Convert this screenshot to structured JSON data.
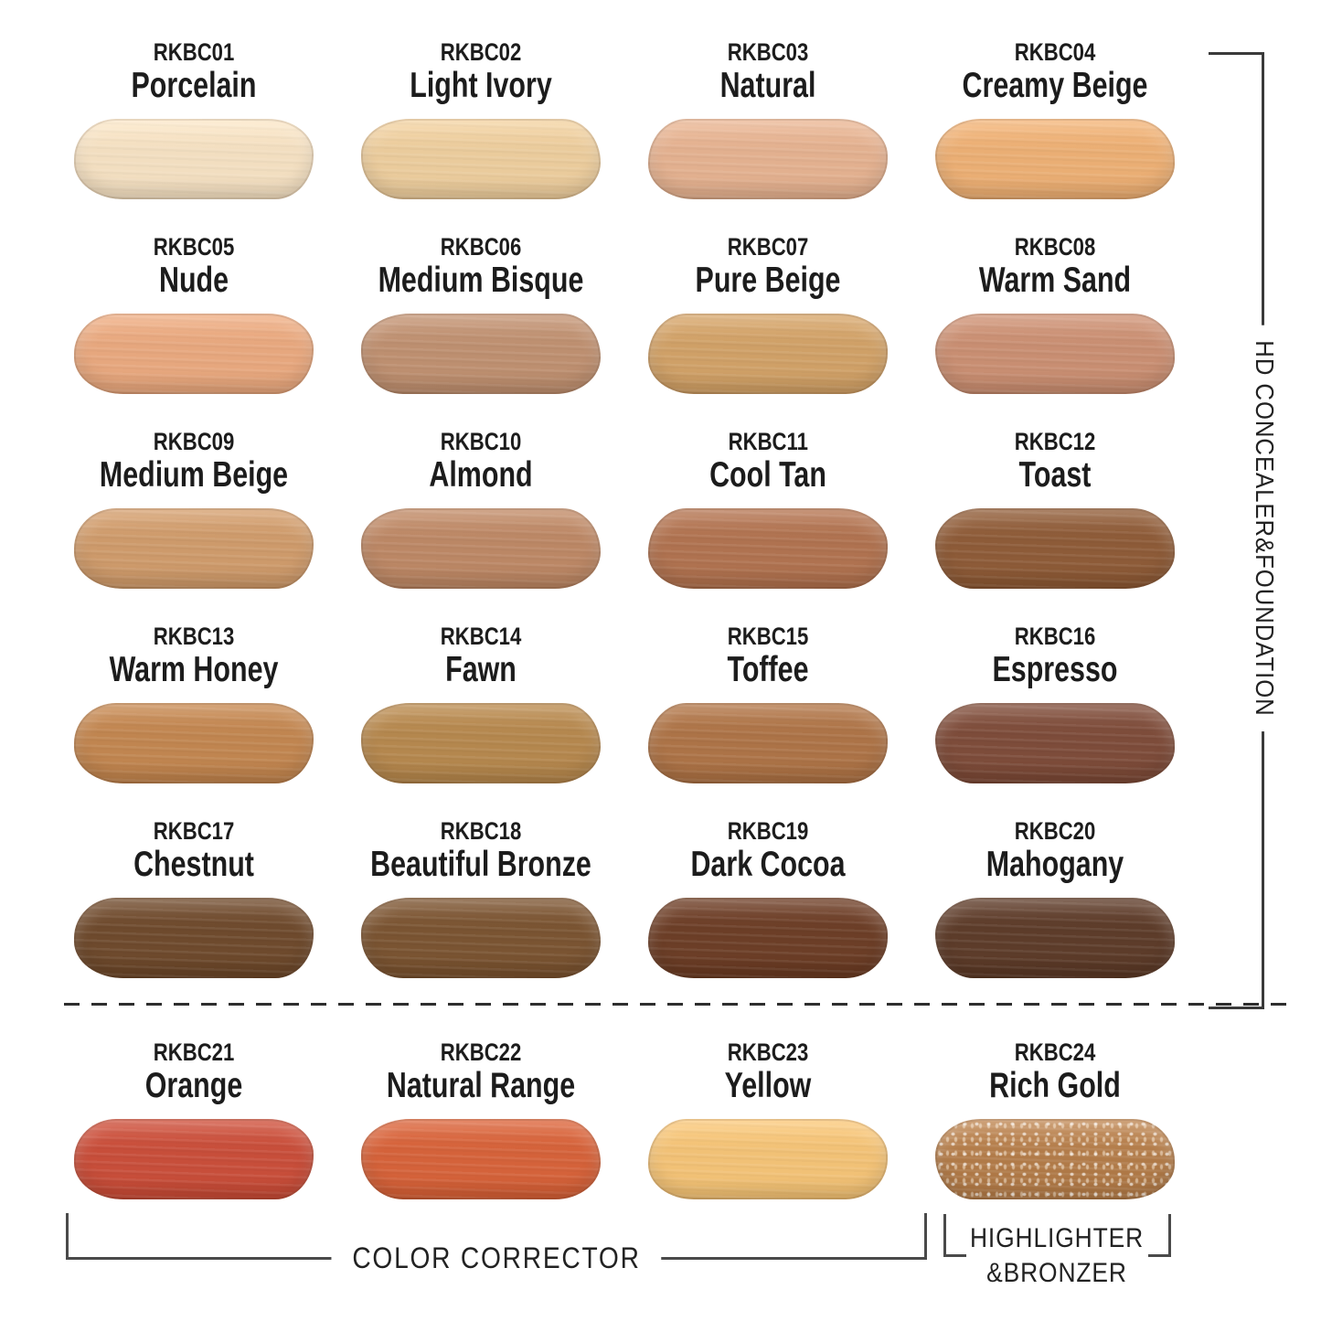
{
  "sections": {
    "hd_concealer_foundation_label": "HD CONCEALER&FOUNDATION",
    "color_corrector_label": "COLOR CORRECTOR",
    "highlighter_bronzer_line1": "HIGHLIGHTER",
    "highlighter_bronzer_line2": "&BRONZER"
  },
  "swatches": [
    {
      "code": "RKBC01",
      "name": "Porcelain",
      "color": "#F2DEC0"
    },
    {
      "code": "RKBC02",
      "name": "Light Ivory",
      "color": "#EACB9C"
    },
    {
      "code": "RKBC03",
      "name": "Natural",
      "color": "#E2B08F"
    },
    {
      "code": "RKBC04",
      "name": "Creamy Beige",
      "color": "#EAAE74"
    },
    {
      "code": "RKBC05",
      "name": "Nude",
      "color": "#E6A77E"
    },
    {
      "code": "RKBC06",
      "name": "Medium Bisque",
      "color": "#BD8F70"
    },
    {
      "code": "RKBC07",
      "name": "Pure Beige",
      "color": "#CFA067"
    },
    {
      "code": "RKBC08",
      "name": "Warm Sand",
      "color": "#C88E72"
    },
    {
      "code": "RKBC09",
      "name": "Medium Beige",
      "color": "#CD9A6B"
    },
    {
      "code": "RKBC10",
      "name": "Almond",
      "color": "#BB8765"
    },
    {
      "code": "RKBC11",
      "name": "Cool Tan",
      "color": "#AF7250"
    },
    {
      "code": "RKBC12",
      "name": "Toast",
      "color": "#8D5B38"
    },
    {
      "code": "RKBC13",
      "name": "Warm Honey",
      "color": "#C08550"
    },
    {
      "code": "RKBC14",
      "name": "Fawn",
      "color": "#B4874E"
    },
    {
      "code": "RKBC15",
      "name": "Toffee",
      "color": "#AC7347"
    },
    {
      "code": "RKBC16",
      "name": "Espresso",
      "color": "#7D4C3A"
    },
    {
      "code": "RKBC17",
      "name": "Chestnut",
      "color": "#6E4A2D"
    },
    {
      "code": "RKBC18",
      "name": "Beautiful Bronze",
      "color": "#7A5432"
    },
    {
      "code": "RKBC19",
      "name": "Dark Cocoa",
      "color": "#6C3E27"
    },
    {
      "code": "RKBC20",
      "name": "Mahogany",
      "color": "#5D3C2A"
    },
    {
      "code": "RKBC21",
      "name": "Orange",
      "color": "#C74E3A"
    },
    {
      "code": "RKBC22",
      "name": "Natural Range",
      "color": "#D4623A"
    },
    {
      "code": "RKBC23",
      "name": "Yellow",
      "color": "#F1C176"
    },
    {
      "code": "RKBC24",
      "name": "Rich Gold",
      "color": "#B27C4A",
      "finish": "shimmer"
    }
  ]
}
